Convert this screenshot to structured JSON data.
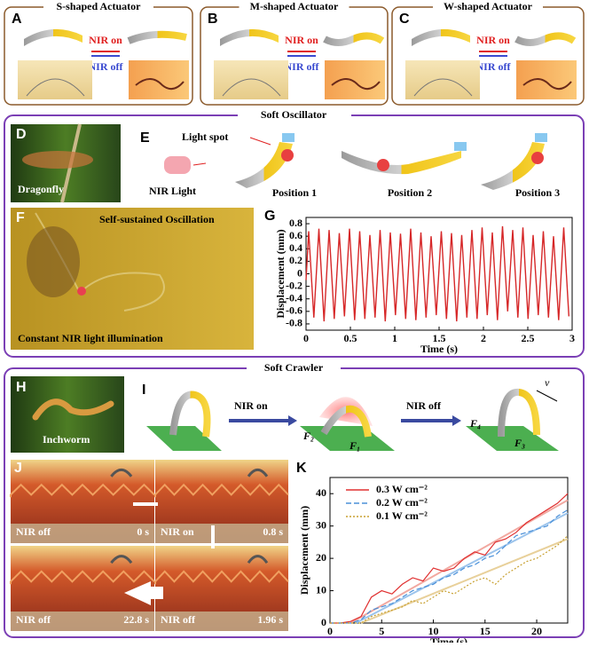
{
  "actuators": [
    {
      "label": "A",
      "title": "S-shaped Actuator",
      "on": "NIR on",
      "off": "NIR off"
    },
    {
      "label": "B",
      "title": "M-shaped Actuator",
      "on": "NIR on",
      "off": "NIR off"
    },
    {
      "label": "C",
      "title": "W-shaped Actuator",
      "on": "NIR on",
      "off": "NIR off"
    }
  ],
  "oscillator": {
    "title": "Soft Oscillator",
    "d_label": "D",
    "d_caption": "Dragonfly",
    "e_label": "E",
    "light_spot": "Light spot",
    "nir_light": "NIR Light",
    "positions": [
      "Position 1",
      "Position 2",
      "Position 3"
    ],
    "f_label": "F",
    "f_top": "Self-sustained Oscillation",
    "f_bottom": "Constant NIR light illumination",
    "g_label": "G"
  },
  "crawler": {
    "title": "Soft Crawler",
    "h_label": "H",
    "h_caption": "Inchworm",
    "i_label": "I",
    "nir_on": "NIR on",
    "nir_off": "NIR off",
    "forces": [
      "F₂",
      "F₁",
      "F₄",
      "F₃"
    ],
    "velocity": "v",
    "j_label": "J",
    "frames": [
      {
        "state": "NIR off",
        "time": "0 s"
      },
      {
        "state": "NIR on",
        "time": "0.8 s"
      },
      {
        "state": "NIR off",
        "time": "22.8 s"
      },
      {
        "state": "NIR off",
        "time": "1.96 s"
      }
    ],
    "k_label": "K"
  },
  "chart_data": [
    {
      "type": "line",
      "x_label": "Time (s)",
      "y_label": "Displacement (mm)",
      "color": "#d62728",
      "x": [
        0,
        0.03,
        0.088,
        0.145,
        0.203,
        0.26,
        0.318,
        0.375,
        0.433,
        0.49,
        0.548,
        0.605,
        0.663,
        0.72,
        0.778,
        0.835,
        0.893,
        0.95,
        1.008,
        1.065,
        1.123,
        1.18,
        1.238,
        1.295,
        1.353,
        1.41,
        1.468,
        1.525,
        1.583,
        1.64,
        1.698,
        1.755,
        1.813,
        1.87,
        1.928,
        1.985,
        2.043,
        2.1,
        2.158,
        2.215,
        2.273,
        2.33,
        2.388,
        2.445,
        2.503,
        2.56,
        2.618,
        2.675,
        2.733,
        2.79,
        2.848,
        2.905,
        2.963
      ],
      "values": [
        -0.1,
        0.68,
        -0.7,
        0.72,
        -0.76,
        0.7,
        -0.72,
        0.65,
        -0.68,
        0.72,
        -0.74,
        0.68,
        -0.72,
        0.62,
        -0.7,
        0.7,
        -0.76,
        0.66,
        -0.66,
        0.64,
        -0.72,
        0.72,
        -0.74,
        0.66,
        -0.7,
        0.6,
        -0.66,
        0.68,
        -0.72,
        0.65,
        -0.76,
        0.62,
        -0.7,
        0.7,
        -0.72,
        0.74,
        -0.66,
        0.66,
        -0.74,
        0.76,
        -0.6,
        0.7,
        -0.7,
        0.74,
        -0.72,
        0.62,
        -0.66,
        0.68,
        -0.7,
        0.6,
        -0.74,
        0.74,
        -0.68
      ],
      "xlim": [
        0,
        3
      ],
      "ylim": [
        -0.9,
        0.9
      ],
      "xticks": [
        0,
        0.5,
        1,
        1.5,
        2,
        2.5,
        3
      ],
      "yticks": [
        -0.8,
        -0.6,
        -0.4,
        -0.2,
        0,
        0.2,
        0.4,
        0.6,
        0.8
      ]
    },
    {
      "type": "line",
      "x_label": "Time (s)",
      "y_label": "Displacement (mm)",
      "x": [
        0,
        1,
        2,
        3,
        4,
        5,
        6,
        7,
        8,
        9,
        10,
        11,
        12,
        13,
        14,
        15,
        16,
        17,
        18,
        19,
        20,
        21,
        22,
        23
      ],
      "series": [
        {
          "name": "0.3 W cm⁻²",
          "color": "#e03030",
          "style": "solid",
          "values": [
            0,
            0,
            0.5,
            2,
            8,
            10,
            9,
            12,
            14,
            13,
            17,
            16,
            17,
            20,
            22,
            21,
            25,
            26,
            28,
            31,
            33,
            35,
            37,
            40
          ]
        },
        {
          "name": "0.2 W cm⁻²",
          "color": "#4a90d9",
          "style": "dashed",
          "values": [
            0,
            0,
            0,
            1,
            4,
            5,
            6,
            8,
            10,
            11,
            12,
            14,
            15,
            17,
            18,
            20,
            21,
            24,
            27,
            28,
            29,
            30,
            33,
            35
          ]
        },
        {
          "name": "0.1 W cm⁻²",
          "color": "#c8a030",
          "style": "dotted",
          "values": [
            0,
            0,
            0,
            0,
            2,
            3,
            4,
            5,
            7,
            6,
            8,
            10,
            9,
            11,
            13,
            14,
            12,
            15,
            17,
            19,
            20,
            22,
            24,
            27
          ]
        }
      ],
      "fits": [
        {
          "color": "#f2a8a0",
          "x": [
            2,
            23
          ],
          "values": [
            0,
            38
          ]
        },
        {
          "color": "#9cc4ec",
          "x": [
            2.5,
            23
          ],
          "values": [
            0,
            34
          ]
        },
        {
          "color": "#e8d09a",
          "x": [
            3,
            23
          ],
          "values": [
            0,
            26
          ]
        }
      ],
      "xlim": [
        0,
        23
      ],
      "ylim": [
        0,
        45
      ],
      "xticks": [
        0,
        5,
        10,
        15,
        20
      ],
      "yticks": [
        0,
        10,
        20,
        30,
        40
      ],
      "legend": "upper left"
    }
  ]
}
